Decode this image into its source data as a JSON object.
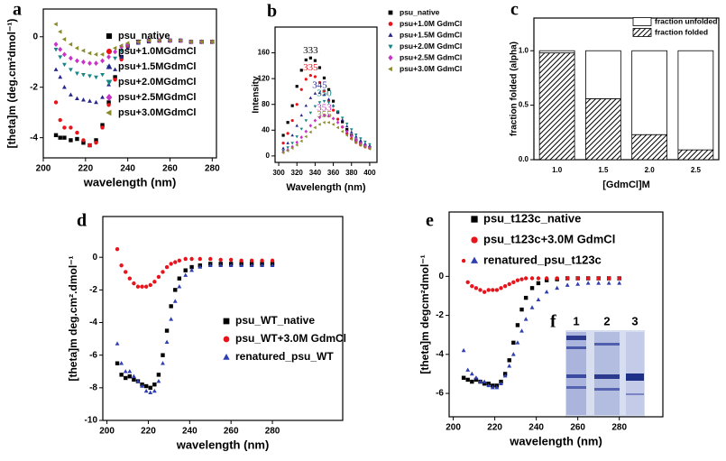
{
  "chart_data": [
    {
      "type": "scatter",
      "panel": "a",
      "x_label": "wavelength (nm)",
      "y_label": "[theta]m (deg.cm²dmol⁻¹)",
      "xlim": [
        200,
        282
      ],
      "ylim": [
        -4.8,
        1.1
      ],
      "xticks": [
        200,
        220,
        240,
        260,
        280
      ],
      "yticks": [
        0,
        -2,
        -4
      ],
      "legend": "upper right",
      "x": [
        206,
        208,
        210,
        213,
        216,
        219,
        222,
        225,
        228,
        231,
        234,
        237,
        240,
        245,
        250,
        255,
        260,
        265,
        270,
        275,
        280
      ],
      "series": [
        {
          "name": "psu_native",
          "color": "#000000",
          "marker": "square",
          "values": [
            -3.9,
            -4.0,
            -4.0,
            -4.1,
            -4.05,
            -4.2,
            -4.3,
            -4.1,
            -3.5,
            -2.6,
            -1.6,
            -0.8,
            -0.35,
            -0.2,
            -0.15,
            -0.15,
            -0.15,
            -0.15,
            -0.2,
            -0.2,
            -0.2
          ]
        },
        {
          "name": "psu+1.0MGdmCl",
          "color": "#e8141c",
          "marker": "circle",
          "values": [
            -2.6,
            -3.3,
            -3.6,
            -3.6,
            -3.8,
            -4.1,
            -4.3,
            -4.2,
            -3.6,
            -2.7,
            -1.7,
            -0.9,
            -0.4,
            -0.2,
            -0.15,
            -0.15,
            -0.15,
            -0.15,
            -0.2,
            -0.2,
            -0.2
          ]
        },
        {
          "name": "psu+1.5MGdmCl",
          "color": "#26268c",
          "marker": "triangle-up",
          "values": [
            -1.3,
            -1.6,
            -2.0,
            -2.3,
            -2.45,
            -2.5,
            -2.55,
            -2.6,
            -2.4,
            -1.9,
            -1.3,
            -0.8,
            -0.45,
            -0.25,
            -0.2,
            -0.15,
            -0.15,
            -0.15,
            -0.2,
            -0.2,
            -0.2
          ]
        },
        {
          "name": "psu+2.0MGdmCl",
          "color": "#178585",
          "marker": "triangle-down",
          "values": [
            -0.5,
            -0.8,
            -1.1,
            -1.3,
            -1.45,
            -1.5,
            -1.55,
            -1.6,
            -1.5,
            -1.2,
            -0.85,
            -0.55,
            -0.35,
            -0.2,
            -0.15,
            -0.15,
            -0.15,
            -0.15,
            -0.2,
            -0.2,
            -0.2
          ]
        },
        {
          "name": "psu+2.5MGdmCl",
          "color": "#c832c8",
          "marker": "diamond",
          "values": [
            -0.3,
            -0.5,
            -0.7,
            -0.85,
            -0.95,
            -1.0,
            -1.05,
            -1.05,
            -0.95,
            -0.8,
            -0.6,
            -0.4,
            -0.3,
            -0.2,
            -0.15,
            -0.15,
            -0.15,
            -0.15,
            -0.2,
            -0.2,
            -0.2
          ]
        },
        {
          "name": "psu+3.0MGdmCl",
          "color": "#8a8a2a",
          "marker": "triangle-left",
          "values": [
            0.5,
            0.2,
            -0.1,
            -0.3,
            -0.45,
            -0.55,
            -0.65,
            -0.7,
            -0.7,
            -0.6,
            -0.45,
            -0.35,
            -0.25,
            -0.2,
            -0.15,
            -0.15,
            -0.15,
            -0.15,
            -0.2,
            -0.2,
            -0.2
          ]
        }
      ]
    },
    {
      "type": "scatter",
      "panel": "b",
      "x_label": "Wavelength (nm)",
      "y_label": "Intensity",
      "xlim": [
        296,
        408
      ],
      "ylim": [
        -10,
        200
      ],
      "xticks": [
        300,
        320,
        340,
        360,
        380,
        400
      ],
      "yticks": [
        0,
        40,
        80,
        120,
        160
      ],
      "legend": "outside right",
      "x": [
        305,
        310,
        315,
        320,
        325,
        330,
        335,
        340,
        345,
        350,
        355,
        360,
        365,
        370,
        375,
        380,
        385,
        390,
        395,
        400
      ],
      "series": [
        {
          "name": "psu_native",
          "color": "#000000",
          "marker": "square",
          "annotation": 333,
          "values": [
            32,
            52,
            78,
            108,
            133,
            149,
            152,
            148,
            137,
            121,
            103,
            85,
            68,
            53,
            41,
            32,
            25,
            20,
            16,
            13
          ]
        },
        {
          "name": "psu+1.0M GdmCl",
          "color": "#e8141c",
          "marker": "circle",
          "annotation": 335,
          "values": [
            20,
            35,
            55,
            80,
            103,
            119,
            125,
            123,
            114,
            101,
            86,
            71,
            57,
            45,
            35,
            27,
            21,
            17,
            14,
            12
          ]
        },
        {
          "name": "psu+1.5M GdmCl",
          "color": "#26268c",
          "marker": "triangle-up",
          "annotation": 345,
          "values": [
            12,
            20,
            32,
            47,
            63,
            78,
            90,
            97,
            98,
            95,
            88,
            78,
            67,
            56,
            46,
            37,
            30,
            24,
            19,
            16
          ]
        },
        {
          "name": "psu+2.0M GdmCl",
          "color": "#178585",
          "marker": "triangle-down",
          "annotation": 350,
          "values": [
            8,
            13,
            20,
            30,
            42,
            55,
            67,
            77,
            83,
            85,
            83,
            77,
            69,
            59,
            50,
            41,
            33,
            27,
            22,
            18
          ]
        },
        {
          "name": "psu+2.5M GdmCl",
          "color": "#c832c8",
          "marker": "diamond",
          "annotation": 353,
          "values": [
            6,
            9,
            14,
            21,
            29,
            38,
            47,
            55,
            60,
            63,
            62,
            58,
            52,
            45,
            38,
            31,
            25,
            20,
            16,
            13
          ]
        },
        {
          "name": "psu+3.0M GdmCl",
          "color": "#8a8a2a",
          "marker": "triangle-left",
          "annotation": 355,
          "values": [
            5,
            8,
            12,
            17,
            23,
            30,
            37,
            44,
            49,
            52,
            52,
            49,
            44,
            38,
            32,
            26,
            21,
            17,
            14,
            11
          ]
        }
      ]
    },
    {
      "type": "bar",
      "panel": "c",
      "x_label": "[GdmCl]M",
      "y_label": "fraction folded (alpha)",
      "stacked": true,
      "ylim": [
        0,
        1.3
      ],
      "yticks": [
        {
          "value": 0,
          "label": "0.0"
        },
        {
          "value": 0.5,
          "label": "0.5"
        },
        {
          "value": 1,
          "label": "1.0"
        }
      ],
      "legend": "upper right",
      "categories": [
        "1.0",
        "1.5",
        "2.0",
        "2.5"
      ],
      "series": [
        {
          "name": "fraction folded",
          "color": "#000000",
          "pattern": "hatch",
          "values": [
            0.98,
            0.56,
            0.23,
            0.09
          ]
        },
        {
          "name": "fraction unfolded",
          "color": "#ffffff",
          "values": [
            0.02,
            0.44,
            0.77,
            0.91
          ]
        }
      ]
    },
    {
      "type": "scatter",
      "panel": "d",
      "x_label": "wavelength (nm)",
      "y_label": "[theta]m deg.cm².dmol⁻¹",
      "xlim": [
        198,
        314
      ],
      "ylim": [
        -10,
        2.5
      ],
      "xticks": [
        200,
        220,
        240,
        260,
        280
      ],
      "yticks": [
        0,
        -2,
        -4,
        -6,
        -8,
        -10
      ],
      "legend": "lower right",
      "x": [
        205,
        207,
        209,
        211,
        213,
        215,
        217,
        219,
        221,
        223,
        225,
        227,
        229,
        231,
        233,
        235,
        238,
        241,
        245,
        250,
        255,
        260,
        265,
        270,
        275,
        280
      ],
      "series": [
        {
          "name": "psu_WT_native",
          "color": "#000000",
          "marker": "square",
          "values": [
            -6.5,
            -7.2,
            -7.4,
            -7.3,
            -7.5,
            -7.6,
            -7.8,
            -7.9,
            -8.0,
            -7.8,
            -7.2,
            -6.0,
            -4.5,
            -3.0,
            -2.0,
            -1.3,
            -0.8,
            -0.6,
            -0.5,
            -0.4,
            -0.4,
            -0.4,
            -0.4,
            -0.4,
            -0.4,
            -0.4
          ]
        },
        {
          "name": "psu_WT+3.0M GdmCl",
          "color": "#e8141c",
          "marker": "circle",
          "values": [
            0.5,
            -0.5,
            -0.9,
            -1.3,
            -1.6,
            -1.8,
            -1.8,
            -1.8,
            -1.7,
            -1.5,
            -1.2,
            -0.9,
            -0.6,
            -0.4,
            -0.3,
            -0.2,
            -0.1,
            -0.1,
            -0.1,
            -0.1,
            -0.15,
            -0.15,
            -0.2,
            -0.2,
            -0.2,
            -0.2
          ]
        },
        {
          "name": "renatured_psu_WT",
          "color": "#2f3fb0",
          "marker": "triangle-up",
          "values": [
            -5.3,
            -6.5,
            -7.0,
            -7.0,
            -7.3,
            -7.6,
            -7.9,
            -8.2,
            -8.3,
            -8.2,
            -7.6,
            -6.5,
            -5.2,
            -3.8,
            -2.7,
            -1.8,
            -1.1,
            -0.8,
            -0.6,
            -0.5,
            -0.5,
            -0.5,
            -0.5,
            -0.5,
            -0.5,
            -0.5
          ]
        }
      ]
    },
    {
      "type": "scatter",
      "panel": "e",
      "x_label": "wavelength (nm)",
      "y_label": "[theta]m degcm²dmol⁻¹",
      "xlim": [
        198,
        301
      ],
      "ylim": [
        -7.2,
        3.3
      ],
      "xticks": [
        200,
        220,
        240,
        260,
        280
      ],
      "yticks": [
        0,
        -2,
        -4,
        -6
      ],
      "legend": "upper left",
      "x": [
        205,
        207,
        209,
        211,
        213,
        215,
        217,
        219,
        221,
        223,
        225,
        227,
        229,
        231,
        233,
        235,
        238,
        241,
        245,
        250,
        255,
        260,
        265,
        270,
        275,
        280
      ],
      "series": [
        {
          "name": "psu_t123c_native",
          "color": "#000000",
          "marker": "square",
          "values": [
            -5.2,
            -5.3,
            -5.4,
            -5.3,
            -5.4,
            -5.5,
            -5.5,
            -5.6,
            -5.6,
            -5.4,
            -5.0,
            -4.3,
            -3.4,
            -2.5,
            -1.7,
            -1.1,
            -0.6,
            -0.35,
            -0.2,
            -0.15,
            -0.1,
            -0.1,
            -0.1,
            -0.1,
            -0.1,
            -0.1
          ]
        },
        {
          "name": "psu_t123c+3.0M GdmCl",
          "color": "#e8141c",
          "marker": "circle",
          "values": [
            0.8,
            -0.3,
            -0.5,
            -0.6,
            -0.7,
            -0.8,
            -0.7,
            -0.7,
            -0.7,
            -0.6,
            -0.5,
            -0.4,
            -0.3,
            -0.2,
            -0.15,
            -0.1,
            -0.1,
            -0.1,
            -0.1,
            -0.1,
            -0.1,
            -0.1,
            -0.1,
            -0.1,
            -0.1,
            -0.1
          ]
        },
        {
          "name": "renatured_psu_t123c",
          "color": "#2f3fb0",
          "marker": "triangle-up",
          "values": [
            -3.8,
            -4.8,
            -5.0,
            -5.2,
            -5.4,
            -5.4,
            -5.6,
            -5.7,
            -5.7,
            -5.5,
            -5.1,
            -4.6,
            -4.0,
            -3.4,
            -2.8,
            -2.2,
            -1.6,
            -1.2,
            -0.8,
            -0.6,
            -0.45,
            -0.4,
            -0.35,
            -0.35,
            -0.35,
            -0.35
          ]
        }
      ]
    }
  ],
  "gel": {
    "panel": "f",
    "lanes": [
      "1",
      "2",
      "3"
    ]
  }
}
